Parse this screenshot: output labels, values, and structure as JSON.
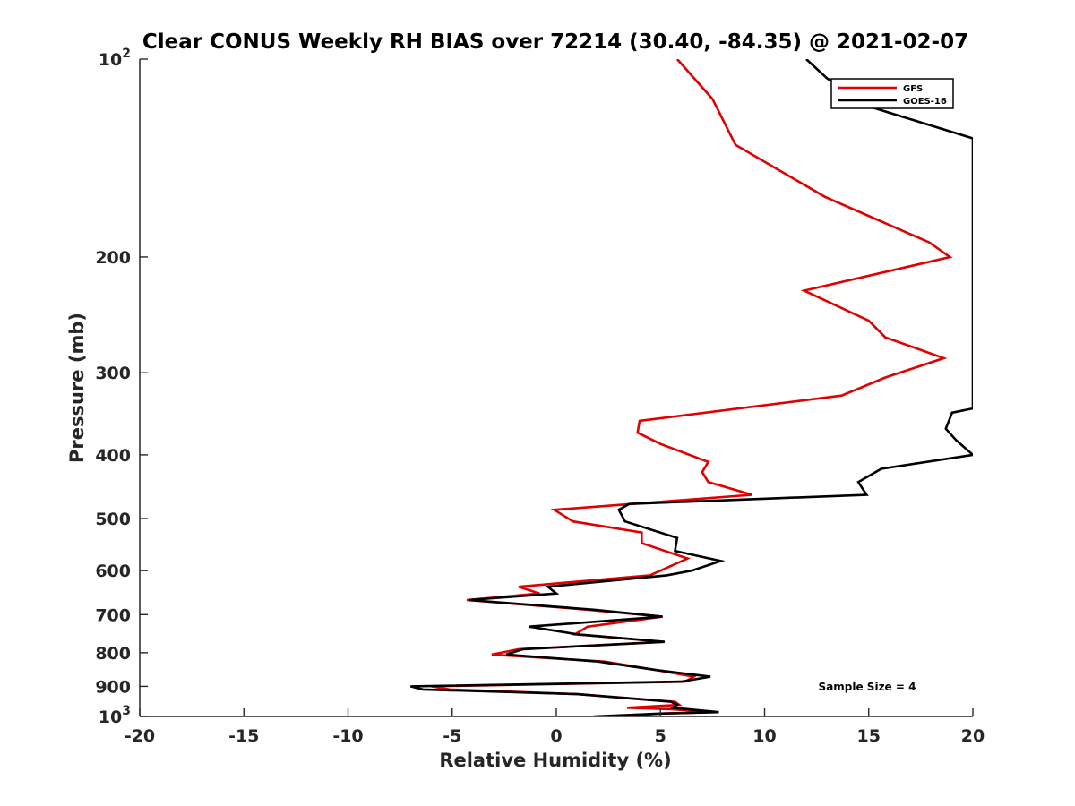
{
  "chart_data": {
    "type": "line",
    "title": "Clear CONUS Weekly RH BIAS over 72214 (30.40, -84.35) @ 2021-02-07",
    "xlabel": "Relative Humidity (%)",
    "ylabel": "Pressure (mb)",
    "xlim": [
      -20,
      20
    ],
    "ylim": [
      100,
      1000
    ],
    "yscale": "log",
    "y_reversed": true,
    "grid": false,
    "legend_location": "top-right",
    "x_ticks": [
      -20,
      -15,
      -10,
      -5,
      0,
      5,
      10,
      15,
      20
    ],
    "x_tick_labels": [
      "-20",
      "-15",
      "-10",
      "-5",
      "0",
      "5",
      "10",
      "15",
      "20"
    ],
    "y_ticks": [
      {
        "value": 100,
        "base": "10",
        "exp": "2",
        "label": ""
      },
      {
        "value": 200,
        "label": "200"
      },
      {
        "value": 300,
        "label": "300"
      },
      {
        "value": 400,
        "label": "400"
      },
      {
        "value": 500,
        "label": "500"
      },
      {
        "value": 600,
        "label": "600"
      },
      {
        "value": 700,
        "label": "700"
      },
      {
        "value": 800,
        "label": "800"
      },
      {
        "value": 900,
        "label": "900"
      },
      {
        "value": 1000,
        "base": "10",
        "exp": "3",
        "label": ""
      }
    ],
    "annotation": "Sample Size = 4",
    "series": [
      {
        "name": "GFS",
        "color": "#e00000",
        "points": [
          [
            5.8,
            100
          ],
          [
            7.5,
            115
          ],
          [
            8.6,
            135
          ],
          [
            12.9,
            162
          ],
          [
            17.9,
            190
          ],
          [
            18.9,
            200
          ],
          [
            11.9,
            225
          ],
          [
            15.0,
            250
          ],
          [
            15.8,
            265
          ],
          [
            18.6,
            285
          ],
          [
            15.8,
            305
          ],
          [
            13.7,
            325
          ],
          [
            4.0,
            355
          ],
          [
            3.9,
            370
          ],
          [
            5.0,
            385
          ],
          [
            7.3,
            410
          ],
          [
            7.0,
            425
          ],
          [
            7.3,
            440
          ],
          [
            9.4,
            460
          ],
          [
            -0.1,
            485
          ],
          [
            0.8,
            505
          ],
          [
            4.1,
            525
          ],
          [
            4.1,
            545
          ],
          [
            6.3,
            575
          ],
          [
            5.0,
            600
          ],
          [
            4.5,
            610
          ],
          [
            -1.8,
            635
          ],
          [
            -0.8,
            650
          ],
          [
            -4.3,
            665
          ],
          [
            1.5,
            688
          ],
          [
            5.1,
            705
          ],
          [
            1.5,
            730
          ],
          [
            0.9,
            750
          ],
          [
            5.2,
            770
          ],
          [
            -1.8,
            790
          ],
          [
            -3.1,
            805
          ],
          [
            2.3,
            825
          ],
          [
            4.8,
            850
          ],
          [
            6.6,
            870
          ],
          [
            6.2,
            885
          ],
          [
            -6.0,
            900
          ],
          [
            -5.1,
            910
          ],
          [
            1.0,
            925
          ],
          [
            5.7,
            950
          ],
          [
            5.9,
            960
          ],
          [
            3.4,
            970
          ],
          [
            5.5,
            975
          ],
          [
            6.5,
            980
          ],
          [
            7.5,
            985
          ],
          [
            5.0,
            990
          ],
          [
            3.0,
            1000
          ]
        ]
      },
      {
        "name": "GOES-16",
        "color": "#000000",
        "points": [
          [
            12.0,
            100
          ],
          [
            13.0,
            107
          ],
          [
            14.7,
            115
          ],
          [
            15.0,
            118
          ],
          [
            20.0,
            132
          ],
          [
            20.0,
            340
          ],
          [
            19.0,
            345
          ],
          [
            18.7,
            365
          ],
          [
            19.2,
            380
          ],
          [
            20.0,
            400
          ],
          [
            15.6,
            420
          ],
          [
            14.5,
            440
          ],
          [
            14.9,
            460
          ],
          [
            3.5,
            475
          ],
          [
            3.0,
            485
          ],
          [
            3.3,
            505
          ],
          [
            5.8,
            535
          ],
          [
            5.7,
            560
          ],
          [
            7.9,
            580
          ],
          [
            6.5,
            600
          ],
          [
            5.3,
            610
          ],
          [
            -0.4,
            635
          ],
          [
            0.0,
            650
          ],
          [
            -4.2,
            665
          ],
          [
            1.8,
            688
          ],
          [
            5.1,
            705
          ],
          [
            -1.3,
            730
          ],
          [
            1.0,
            750
          ],
          [
            5.2,
            770
          ],
          [
            -1.6,
            790
          ],
          [
            -2.4,
            805
          ],
          [
            2.0,
            825
          ],
          [
            4.8,
            850
          ],
          [
            7.4,
            870
          ],
          [
            6.0,
            885
          ],
          [
            -7.0,
            900
          ],
          [
            -6.4,
            910
          ],
          [
            1.0,
            925
          ],
          [
            5.5,
            950
          ],
          [
            5.8,
            960
          ],
          [
            5.6,
            970
          ],
          [
            7.8,
            985
          ],
          [
            5.0,
            990
          ],
          [
            1.8,
            1000
          ]
        ]
      }
    ]
  }
}
